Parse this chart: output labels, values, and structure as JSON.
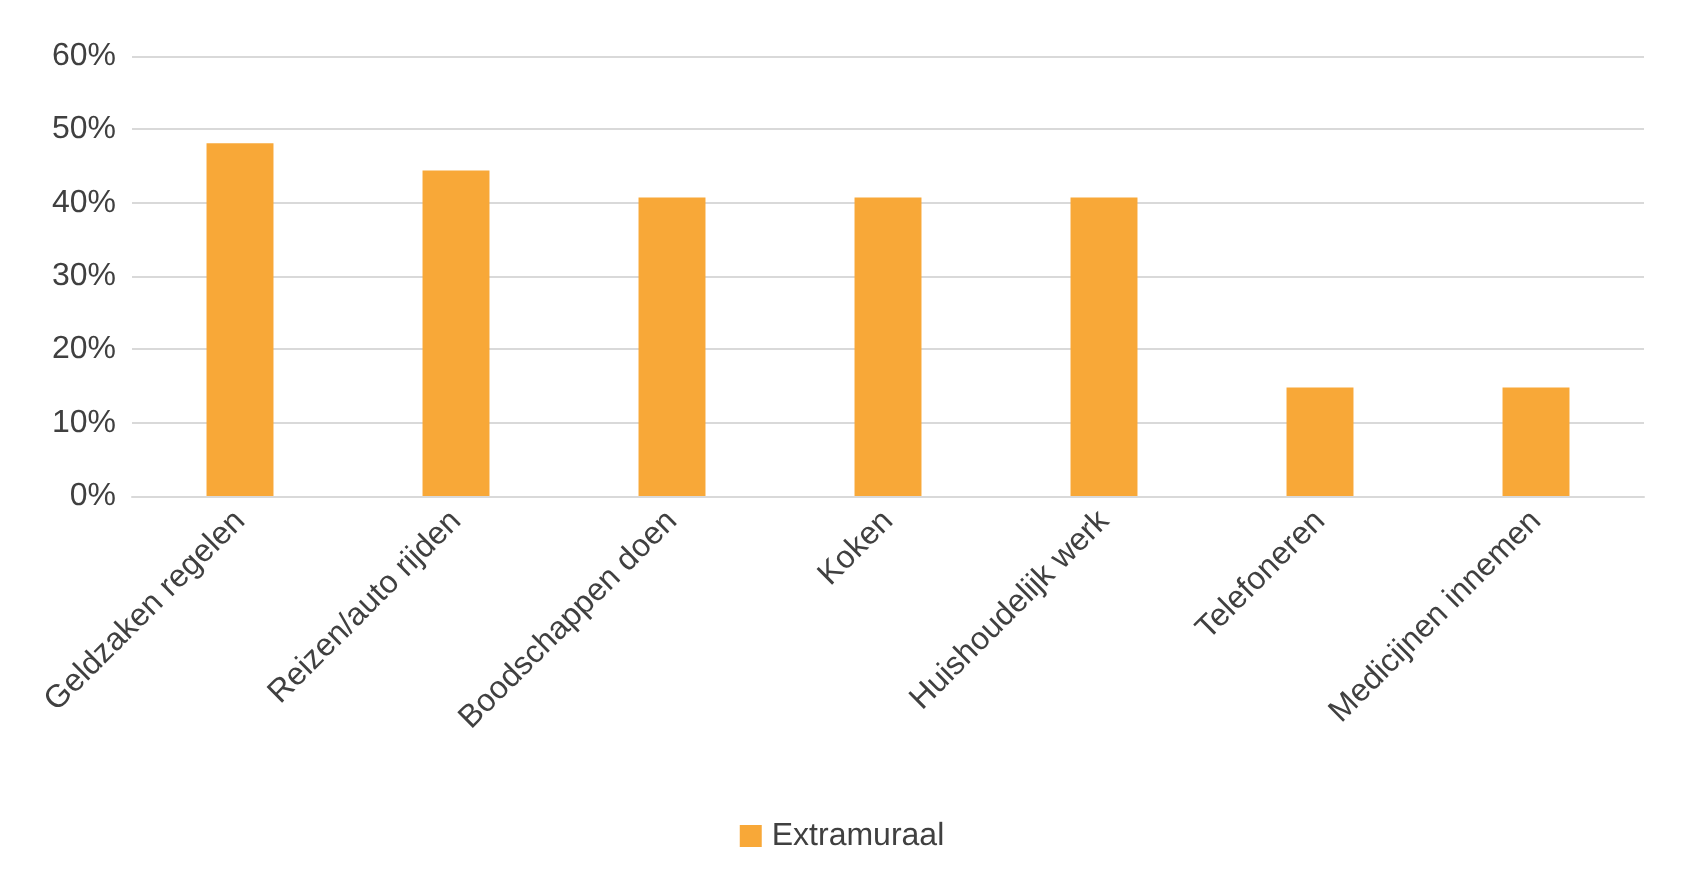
{
  "chart_data": {
    "type": "bar",
    "categories": [
      "Geldzaken regelen",
      "Reizen/auto rijden",
      "Boodschappen doen",
      "Koken",
      "Huishoudelijk werk",
      "Telefoneren",
      "Medicijnen innemen"
    ],
    "series": [
      {
        "name": "Extramuraal",
        "color": "#f8a838",
        "values": [
          48.1,
          44.4,
          40.7,
          40.7,
          40.7,
          14.8,
          14.8
        ]
      }
    ],
    "ylim": [
      0,
      60
    ],
    "yticks": [
      {
        "value": 0,
        "label": "0%"
      },
      {
        "value": 10,
        "label": "10%"
      },
      {
        "value": 20,
        "label": "20%"
      },
      {
        "value": 30,
        "label": "30%"
      },
      {
        "value": 40,
        "label": "40%"
      },
      {
        "value": 50,
        "label": "50%"
      },
      {
        "value": 60,
        "label": "60%"
      }
    ],
    "grid": "y",
    "legend": "bottom"
  }
}
